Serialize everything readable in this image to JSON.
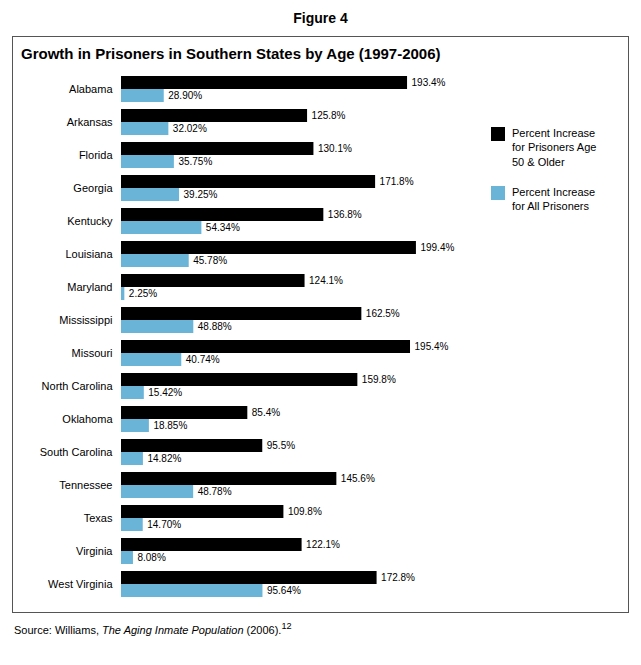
{
  "chart_data": {
    "type": "bar",
    "orientation": "horizontal",
    "title": "Growth in Prisoners in Southern States by Age (1997-2006)",
    "annotations": [
      {
        "text": "Figure 4"
      },
      {
        "parts": [
          {
            "text": "Source: Williams, "
          },
          {
            "text": "The Aging Inmate Population",
            "style": "italic"
          },
          {
            "text": " (2006)."
          },
          {
            "text": "12",
            "style": "superscript"
          }
        ]
      }
    ],
    "categories": [
      "Alabama",
      "Arkansas",
      "Florida",
      "Georgia",
      "Kentucky",
      "Louisiana",
      "Maryland",
      "Mississippi",
      "Missouri",
      "North Carolina",
      "Oklahoma",
      "South Carolina",
      "Tennessee",
      "Texas",
      "Virginia",
      "West Virginia"
    ],
    "series": [
      {
        "name": "Percent Increase\nfor Prisoners Age\n50 & Older",
        "color": "#000000",
        "values": [
          193.4,
          125.8,
          130.1,
          171.8,
          136.8,
          199.4,
          124.1,
          162.5,
          195.4,
          159.8,
          85.4,
          95.5,
          145.6,
          109.8,
          122.1,
          172.8
        ],
        "value_labels": [
          "193.4%",
          "125.8%",
          "130.1%",
          "171.8%",
          "136.8%",
          "199.4%",
          "124.1%",
          "162.5%",
          "195.4%",
          "159.8%",
          "85.4%",
          "95.5%",
          "145.6%",
          "109.8%",
          "122.1%",
          "172.8%"
        ]
      },
      {
        "name": "Percent Increase\nfor All Prisoners",
        "color": "#6ab4d8",
        "values": [
          28.9,
          32.02,
          35.75,
          39.25,
          54.34,
          45.78,
          2.25,
          48.88,
          40.74,
          15.42,
          18.85,
          14.82,
          48.78,
          14.7,
          8.08,
          95.64
        ],
        "value_labels": [
          "28.90%",
          "32.02%",
          "35.75%",
          "39.25%",
          "54.34%",
          "45.78%",
          "2.25%",
          "48.88%",
          "40.74%",
          "15.42%",
          "18.85%",
          "14.82%",
          "48.78%",
          "14.70%",
          "8.08%",
          "95.64%"
        ]
      }
    ],
    "xlim": [
      0,
      215
    ],
    "data_labels": true,
    "tick_labels": "y",
    "grid": false,
    "legend": "right"
  }
}
